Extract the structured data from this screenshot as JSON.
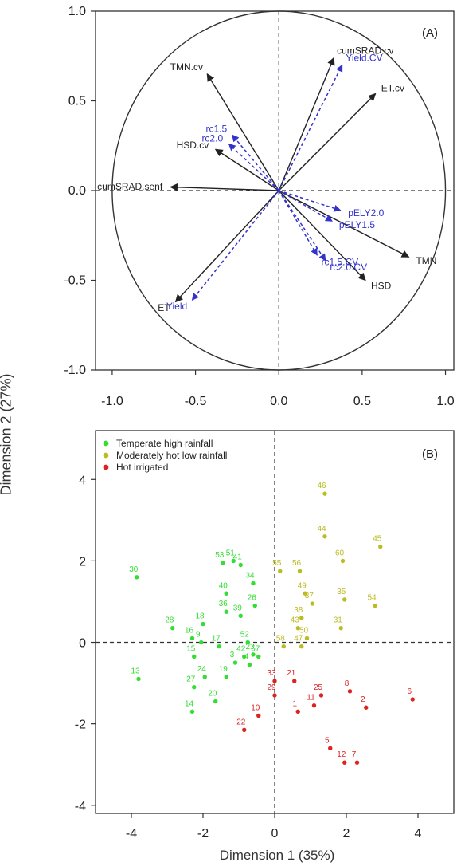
{
  "ylabel_shared": "Dimension 2 (27%)",
  "xlabel_shared": "Dimension 1 (35%)",
  "chart_data": [
    {
      "type": "scatter",
      "panel_label": "(A)",
      "xlim": [
        -1.1,
        1.05
      ],
      "ylim": [
        -1.0,
        1.0
      ],
      "x_ticks": [
        "-1.0",
        "-0.5",
        "0.0",
        "0.5",
        "1.0"
      ],
      "y_ticks": [
        "1.0",
        "0.5",
        "0.0",
        "-0.5",
        "-1.0"
      ],
      "unit_circle": true,
      "zero_lines": true,
      "series": [
        {
          "group": "black",
          "color": "#222222",
          "arrows": [
            {
              "label": "TMN.cv",
              "x": -0.43,
              "y": 0.65
            },
            {
              "label": "cumSRAD.cv",
              "x": 0.33,
              "y": 0.74
            },
            {
              "label": "ET.cv",
              "x": 0.58,
              "y": 0.54
            },
            {
              "label": "HSD.cv",
              "x": -0.38,
              "y": 0.23
            },
            {
              "label": "cumSRAD.senf",
              "x": -0.65,
              "y": 0.02
            },
            {
              "label": "TMN",
              "x": 0.78,
              "y": -0.37
            },
            {
              "label": "HSD",
              "x": 0.52,
              "y": -0.5
            },
            {
              "label": "ET",
              "x": -0.62,
              "y": -0.62
            }
          ]
        },
        {
          "group": "blue",
          "color": "#3333cc",
          "arrows": [
            {
              "label": "Yield.CV",
              "x": 0.38,
              "y": 0.7
            },
            {
              "label": "rc1.5",
              "x": -0.28,
              "y": 0.31
            },
            {
              "label": "rc2.0",
              "x": -0.3,
              "y": 0.26
            },
            {
              "label": "pELY2.0",
              "x": 0.37,
              "y": -0.11
            },
            {
              "label": "pELY1.5",
              "x": 0.32,
              "y": -0.17
            },
            {
              "label": "rc2.0.CV",
              "x": 0.28,
              "y": -0.39
            },
            {
              "label": "rc1.5.CV",
              "x": 0.23,
              "y": -0.36
            },
            {
              "label": "Yield",
              "x": -0.52,
              "y": -0.61
            }
          ]
        }
      ]
    },
    {
      "type": "scatter",
      "panel_label": "(B)",
      "xlim": [
        -5,
        5
      ],
      "ylim": [
        -4.2,
        5.2
      ],
      "x_ticks": [
        "-4",
        "-2",
        "0",
        "2",
        "4"
      ],
      "y_ticks": [
        "4",
        "2",
        "0",
        "-2",
        "-4"
      ],
      "zero_lines": true,
      "legend_position": "top-left",
      "series": [
        {
          "name": "Temperate high rainfall",
          "color": "#33dd33",
          "points": [
            {
              "id": "30",
              "x": -3.85,
              "y": 1.6
            },
            {
              "id": "13",
              "x": -3.8,
              "y": -0.9
            },
            {
              "id": "28",
              "x": -2.85,
              "y": 0.35
            },
            {
              "id": "16",
              "x": -2.3,
              "y": 0.1
            },
            {
              "id": "18",
              "x": -2.0,
              "y": 0.45
            },
            {
              "id": "9",
              "x": -2.05,
              "y": 0.0
            },
            {
              "id": "15",
              "x": -2.25,
              "y": -0.35
            },
            {
              "id": "14",
              "x": -2.3,
              "y": -1.7
            },
            {
              "id": "27",
              "x": -2.25,
              "y": -1.1
            },
            {
              "id": "24",
              "x": -1.95,
              "y": -0.85
            },
            {
              "id": "20",
              "x": -1.65,
              "y": -1.45
            },
            {
              "id": "19",
              "x": -1.35,
              "y": -0.85
            },
            {
              "id": "17",
              "x": -1.55,
              "y": -0.1
            },
            {
              "id": "3",
              "x": -1.1,
              "y": -0.5
            },
            {
              "id": "40",
              "x": -1.35,
              "y": 1.2
            },
            {
              "id": "53",
              "x": -1.45,
              "y": 1.95
            },
            {
              "id": "51",
              "x": -1.15,
              "y": 2.0
            },
            {
              "id": "41",
              "x": -0.95,
              "y": 1.9
            },
            {
              "id": "36",
              "x": -1.35,
              "y": 0.75
            },
            {
              "id": "39",
              "x": -0.95,
              "y": 0.65
            },
            {
              "id": "34",
              "x": -0.6,
              "y": 1.45
            },
            {
              "id": "26",
              "x": -0.55,
              "y": 0.9
            },
            {
              "id": "52",
              "x": -0.75,
              "y": 0.0
            },
            {
              "id": "42",
              "x": -0.85,
              "y": -0.35
            },
            {
              "id": "57",
              "x": -0.45,
              "y": -0.35
            },
            {
              "id": "23",
              "x": -0.6,
              "y": -0.3
            },
            {
              "id": "4",
              "x": -0.7,
              "y": -0.55
            }
          ]
        },
        {
          "name": "Moderately hot low rainfall",
          "color": "#bbbb22",
          "points": [
            {
              "id": "46",
              "x": 1.4,
              "y": 3.65
            },
            {
              "id": "44",
              "x": 1.4,
              "y": 2.6
            },
            {
              "id": "45",
              "x": 2.95,
              "y": 2.35
            },
            {
              "id": "60",
              "x": 1.9,
              "y": 2.0
            },
            {
              "id": "55",
              "x": 0.15,
              "y": 1.75
            },
            {
              "id": "56",
              "x": 0.7,
              "y": 1.75
            },
            {
              "id": "49",
              "x": 0.85,
              "y": 1.2
            },
            {
              "id": "37",
              "x": 1.05,
              "y": 0.95
            },
            {
              "id": "35",
              "x": 1.95,
              "y": 1.05
            },
            {
              "id": "54",
              "x": 2.8,
              "y": 0.9
            },
            {
              "id": "31",
              "x": 1.85,
              "y": 0.35
            },
            {
              "id": "38",
              "x": 0.75,
              "y": 0.6
            },
            {
              "id": "43",
              "x": 0.65,
              "y": 0.35
            },
            {
              "id": "58",
              "x": 0.25,
              "y": -0.1
            },
            {
              "id": "47",
              "x": 0.75,
              "y": -0.1
            },
            {
              "id": "50",
              "x": 0.9,
              "y": 0.1
            }
          ]
        },
        {
          "name": "Hot irrigated",
          "color": "#dd2222",
          "points": [
            {
              "id": "6",
              "x": 3.85,
              "y": -1.4
            },
            {
              "id": "2",
              "x": 2.55,
              "y": -1.6
            },
            {
              "id": "8",
              "x": 2.1,
              "y": -1.2
            },
            {
              "id": "25",
              "x": 1.3,
              "y": -1.3
            },
            {
              "id": "11",
              "x": 1.1,
              "y": -1.55
            },
            {
              "id": "21",
              "x": 0.55,
              "y": -0.95
            },
            {
              "id": "33",
              "x": 0.0,
              "y": -0.95
            },
            {
              "id": "29",
              "x": 0.0,
              "y": -1.3
            },
            {
              "id": "10",
              "x": -0.45,
              "y": -1.8
            },
            {
              "id": "22",
              "x": -0.85,
              "y": -2.15
            },
            {
              "id": "1",
              "x": 0.65,
              "y": -1.7
            },
            {
              "id": "5",
              "x": 1.55,
              "y": -2.6
            },
            {
              "id": "12",
              "x": 1.95,
              "y": -2.95
            },
            {
              "id": "7",
              "x": 2.3,
              "y": -2.95
            }
          ]
        }
      ]
    }
  ]
}
